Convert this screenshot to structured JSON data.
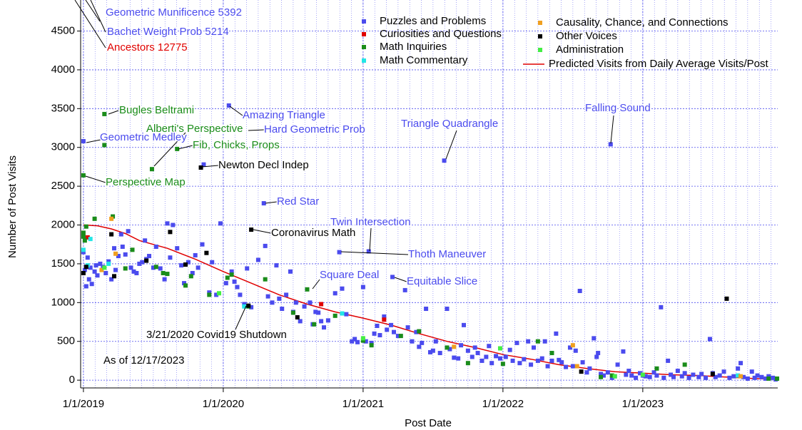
{
  "chart_data": {
    "type": "scatter",
    "x_label": "Post Date",
    "y_label": "Number of Post Visits",
    "xlim": [
      2018.98,
      2023.965
    ],
    "ylim": [
      -100,
      4900
    ],
    "xticks": [
      {
        "value": 2019,
        "label": "1/1/2019"
      },
      {
        "value": 2020,
        "label": "1/1/2020"
      },
      {
        "value": 2021,
        "label": "1/1/2021"
      },
      {
        "value": 2022,
        "label": "1/1/2022"
      },
      {
        "value": 2023,
        "label": "1/1/2023"
      }
    ],
    "yticks": [
      0,
      500,
      1000,
      1500,
      2000,
      2500,
      3000,
      3500,
      4000,
      4500
    ],
    "grid": true,
    "series": [
      {
        "name": "Puzzles and Problems",
        "color": "#4b4bee",
        "x": [
          2019.0,
          2019.0,
          2019.01,
          2019.02,
          2019.03,
          2019.04,
          2019.05,
          2019.06,
          2019.08,
          2019.09,
          2019.1,
          2019.12,
          2019.14,
          2019.16,
          2019.18,
          2019.2,
          2019.22,
          2019.23,
          2019.25,
          2019.27,
          2019.28,
          2019.3,
          2019.32,
          2019.34,
          2019.36,
          2019.38,
          2019.4,
          2019.42,
          2019.44,
          2019.45,
          2019.47,
          2019.5,
          2019.52,
          2019.55,
          2019.58,
          2019.6,
          2019.62,
          2019.64,
          2019.67,
          2019.7,
          2019.72,
          2019.75,
          2019.78,
          2019.8,
          2019.82,
          2019.85,
          2019.86,
          2019.9,
          2019.92,
          2019.95,
          2019.98,
          2020.02,
          2020.04,
          2020.06,
          2020.08,
          2020.1,
          2020.12,
          2020.15,
          2020.17,
          2020.2,
          2020.25,
          2020.29,
          2020.3,
          2020.32,
          2020.35,
          2020.38,
          2020.4,
          2020.42,
          2020.45,
          2020.48,
          2020.5,
          2020.52,
          2020.55,
          2020.58,
          2020.62,
          2020.64,
          2020.66,
          2020.68,
          2020.7,
          2020.72,
          2020.75,
          2020.83,
          2020.8,
          2020.85,
          2020.88,
          2020.92,
          2020.94,
          2020.96,
          2021.0,
          2021.02,
          2021.04,
          2021.06,
          2021.08,
          2021.1,
          2021.12,
          2021.15,
          2021.17,
          2021.2,
          2021.21,
          2021.22,
          2021.25,
          2021.3,
          2021.32,
          2021.35,
          2021.38,
          2021.4,
          2021.42,
          2021.45,
          2021.48,
          2021.5,
          2021.52,
          2021.55,
          2021.58,
          2021.6,
          2021.62,
          2021.65,
          2021.68,
          2021.7,
          2021.72,
          2021.75,
          2021.78,
          2021.8,
          2021.82,
          2021.85,
          2021.88,
          2021.9,
          2021.92,
          2021.95,
          2021.98,
          2022.02,
          2022.05,
          2022.07,
          2022.1,
          2022.12,
          2022.15,
          2022.18,
          2022.2,
          2022.22,
          2022.25,
          2022.28,
          2022.3,
          2022.32,
          2022.35,
          2022.38,
          2022.4,
          2022.42,
          2022.45,
          2022.48,
          2022.5,
          2022.52,
          2022.55,
          2022.57,
          2022.6,
          2022.62,
          2022.65,
          2022.67,
          2022.68,
          2022.7,
          2022.72,
          2022.75,
          2022.77,
          2022.78,
          2022.8,
          2022.82,
          2022.86,
          2022.88,
          2022.9,
          2022.92,
          2022.95,
          2022.98,
          2023.0,
          2023.02,
          2023.05,
          2023.08,
          2023.1,
          2023.13,
          2023.15,
          2023.18,
          2023.2,
          2023.22,
          2023.25,
          2023.28,
          2023.3,
          2023.33,
          2023.36,
          2023.4,
          2023.42,
          2023.45,
          2023.48,
          2023.5,
          2023.52,
          2023.55,
          2023.58,
          2023.62,
          2023.65,
          2023.68,
          2023.7,
          2023.72,
          2023.75,
          2023.78,
          2023.8,
          2023.82,
          2023.85,
          2023.88,
          2023.9,
          2023.93,
          2023.95
        ],
        "y": [
          3080,
          1650,
          1420,
          1210,
          1580,
          1300,
          1450,
          1240,
          1400,
          1480,
          1350,
          1500,
          1460,
          1380,
          1530,
          1300,
          1700,
          1420,
          1600,
          1880,
          1720,
          1620,
          1920,
          1450,
          1400,
          1380,
          1500,
          1520,
          1800,
          1560,
          1600,
          1450,
          1720,
          1440,
          1300,
          2020,
          1580,
          2000,
          1700,
          1480,
          1250,
          1520,
          1380,
          1610,
          1450,
          1750,
          2780,
          1130,
          1520,
          1100,
          2020,
          1250,
          3540,
          1400,
          1270,
          1200,
          1100,
          980,
          1440,
          940,
          1550,
          2280,
          1730,
          1080,
          1000,
          1480,
          1050,
          920,
          1100,
          1400,
          880,
          1000,
          760,
          950,
          1000,
          720,
          880,
          870,
          760,
          680,
          770,
          1650,
          1120,
          1180,
          850,
          500,
          530,
          490,
          1200,
          500,
          1660,
          480,
          600,
          700,
          580,
          820,
          650,
          710,
          1330,
          620,
          570,
          1160,
          680,
          500,
          620,
          430,
          480,
          920,
          360,
          380,
          500,
          350,
          2830,
          920,
          400,
          290,
          280,
          450,
          710,
          380,
          300,
          420,
          350,
          250,
          300,
          440,
          220,
          310,
          280,
          300,
          390,
          250,
          480,
          220,
          270,
          500,
          200,
          420,
          250,
          280,
          500,
          180,
          250,
          600,
          260,
          230,
          170,
          420,
          180,
          380,
          1150,
          230,
          100,
          150,
          540,
          300,
          350,
          80,
          60,
          100,
          3040,
          30,
          50,
          200,
          370,
          70,
          120,
          60,
          30,
          90,
          60,
          50,
          40,
          100,
          60,
          940,
          30,
          250,
          70,
          40,
          120,
          50,
          90,
          30,
          70,
          40,
          80,
          30,
          530,
          90,
          40,
          60,
          110,
          30,
          50,
          150,
          220,
          40,
          20,
          110,
          30,
          60,
          40,
          20,
          50,
          30,
          10
        ]
      },
      {
        "name": "Curiosities and Questions",
        "color": "#e00000",
        "x": [
          2019.03,
          2020.7,
          2021.15
        ],
        "y": [
          1840,
          980,
          780
        ]
      },
      {
        "name": "Math Inquiries",
        "color": "#1a8c1a",
        "x": [
          2019.0,
          2019.0,
          2019.0,
          2019.01,
          2019.02,
          2019.08,
          2019.15,
          2019.15,
          2019.21,
          2019.3,
          2019.35,
          2019.49,
          2019.52,
          2019.57,
          2019.67,
          2019.6,
          2019.73,
          2019.77,
          2019.9,
          2020.03,
          2020.06,
          2020.18,
          2020.3,
          2020.5,
          2020.6,
          2020.65,
          2020.8,
          2021.0,
          2021.06,
          2021.27,
          2021.4,
          2021.6,
          2021.75,
          2022.0,
          2022.25,
          2022.35,
          2022.7,
          2022.78,
          2023.1,
          2023.3,
          2023.9,
          2023.96
        ],
        "y": [
          2640,
          1900,
          1850,
          1800,
          1980,
          2080,
          3430,
          3030,
          2110,
          1440,
          1680,
          2720,
          1460,
          1380,
          2980,
          1370,
          1220,
          1340,
          1100,
          1320,
          1360,
          950,
          1300,
          870,
          1170,
          720,
          830,
          510,
          450,
          570,
          630,
          420,
          220,
          210,
          500,
          350,
          40,
          60,
          150,
          200,
          20,
          20
        ]
      },
      {
        "name": "Math Commentary",
        "color": "#22e6e6",
        "x": [
          2019.0,
          2019.03,
          2019.05,
          2019.18,
          2020.15,
          2020.85,
          2023.68
        ],
        "y": [
          1680,
          1480,
          1820,
          1500,
          950,
          860,
          60
        ]
      },
      {
        "name": "Causality, Chance, and Connections",
        "color": "#f0a020",
        "x": [
          2019.13,
          2019.2,
          2019.23,
          2021.65,
          2022.5,
          2022.53,
          2023.7
        ],
        "y": [
          1420,
          2080,
          1630,
          430,
          450,
          180,
          50
        ]
      },
      {
        "name": "Other Voices",
        "color": "#000000",
        "x": [
          2019.0,
          2019.02,
          2019.2,
          2019.22,
          2019.45,
          2019.62,
          2019.73,
          2019.88,
          2019.84,
          2020.2,
          2020.18,
          2020.53,
          2022.56,
          2023.5,
          2023.6
        ],
        "y": [
          1380,
          1460,
          1880,
          1340,
          1540,
          1910,
          1490,
          1640,
          2740,
          1940,
          960,
          810,
          110,
          80,
          1050
        ]
      },
      {
        "name": "Administration",
        "color": "#44ee44",
        "x": [
          2019.15,
          2019.97,
          2021.0,
          2021.98,
          2022.8,
          2023.0
        ],
        "y": [
          1450,
          1120,
          540,
          410,
          50,
          70
        ]
      }
    ],
    "trend": {
      "name": "Predicted Visits from Daily Average Visits/Post",
      "color": "#e00000",
      "x": [
        2019.0,
        2019.1,
        2019.2,
        2019.3,
        2019.4,
        2019.6,
        2019.8,
        2020.0,
        2020.2,
        2020.4,
        2020.6,
        2020.8,
        2021.0,
        2021.2,
        2021.4,
        2021.6,
        2021.8,
        2022.0,
        2022.2,
        2022.4,
        2022.6,
        2022.8,
        2023.0,
        2023.2,
        2023.4,
        2023.6,
        2023.8,
        2023.95
      ],
      "y": [
        2000,
        1990,
        1950,
        1890,
        1800,
        1700,
        1560,
        1400,
        1250,
        1100,
        980,
        880,
        800,
        710,
        600,
        500,
        420,
        330,
        270,
        200,
        150,
        110,
        90,
        70,
        60,
        40,
        20,
        10
      ]
    },
    "annotations": [
      {
        "text": "Geometric Munificence 5392",
        "color": "#4b4bee"
      },
      {
        "text": "Bachet Weight Prob 5214",
        "color": "#4b4bee"
      },
      {
        "text": "Ancestors 12775",
        "color": "#e00000"
      },
      {
        "text": "Bugles Beltrami",
        "color": "#1a8c1a"
      },
      {
        "text": "Alberti's Perspective",
        "color": "#1a8c1a"
      },
      {
        "text": "Geometric Medley",
        "color": "#4b4bee"
      },
      {
        "text": "Fib, Chicks, Props",
        "color": "#1a8c1a"
      },
      {
        "text": "Perspective Map",
        "color": "#1a8c1a"
      },
      {
        "text": "Amazing Triangle",
        "color": "#4b4bee"
      },
      {
        "text": "Hard Geometric Prob",
        "color": "#4b4bee"
      },
      {
        "text": "Newton Decl Indep",
        "color": "#000000"
      },
      {
        "text": "Red Star",
        "color": "#4b4bee"
      },
      {
        "text": "Coronavirus Math",
        "color": "#000000"
      },
      {
        "text": "Twin Intersection",
        "color": "#4b4bee"
      },
      {
        "text": "Thoth Maneuver",
        "color": "#4b4bee"
      },
      {
        "text": "Square Deal",
        "color": "#4b4bee"
      },
      {
        "text": "Equitable Slice",
        "color": "#4b4bee"
      },
      {
        "text": "3/21/2020 Covid19 Shutdown",
        "color": "#000000"
      },
      {
        "text": "Triangle Quadrangle",
        "color": "#4b4bee"
      },
      {
        "text": "Falling Sound",
        "color": "#4b4bee"
      },
      {
        "text": "As of 12/17/2023",
        "color": "#000000"
      }
    ]
  }
}
